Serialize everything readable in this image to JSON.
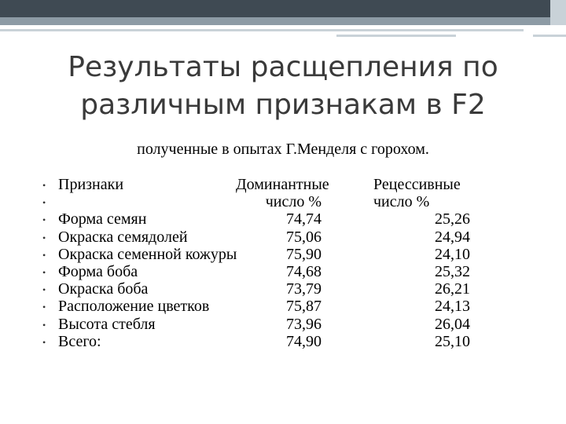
{
  "slide": {
    "title_line1": "Результаты расщепления по",
    "title_line2": "различным признакам в F2",
    "subtitle": "полученные в опытах Г.Менделя с горохом."
  },
  "table": {
    "header": {
      "trait": "Признаки",
      "dominant": "Доминантные",
      "recessive": "Рецессивные"
    },
    "subheader": {
      "dominant": "число  %",
      "recessive": "число  %"
    },
    "rows": [
      {
        "trait": "Форма семян",
        "dominant": "74,74",
        "recessive": "25,26"
      },
      {
        "trait": "Окраска семядолей",
        "dominant": "75,06",
        "recessive": "24,94"
      },
      {
        "trait": "Окраска семенной кожуры",
        "dominant": "75,90",
        "recessive": "24,10"
      },
      {
        "trait": "Форма боба",
        "dominant": "74,68",
        "recessive": "25,32"
      },
      {
        "trait": "Окраска боба",
        "dominant": "73,79",
        "recessive": "26,21"
      },
      {
        "trait": "Расположение цветков",
        "dominant": "75,87",
        "recessive": "24,13"
      },
      {
        "trait": "Высота стебля",
        "dominant": "73,96",
        "recessive": "26,04"
      },
      {
        "trait": "Всего:",
        "dominant": "74,90",
        "recessive": "25,10"
      }
    ]
  },
  "bullet_glyph": "•",
  "colors": {
    "topbar_dark": "#3f4a53",
    "topbar_mid": "#8d9ba5",
    "accent_light": "#c9d2d8",
    "title_text": "#3a3a3a"
  }
}
